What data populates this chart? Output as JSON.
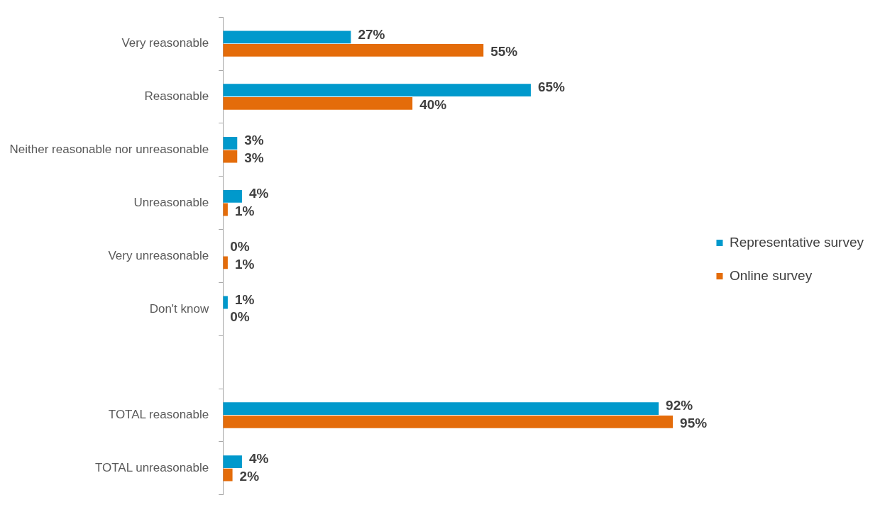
{
  "chart_data": {
    "type": "bar",
    "orientation": "horizontal",
    "categories": [
      "Very reasonable",
      "Reasonable",
      "Neither reasonable nor unreasonable",
      "Unreasonable",
      "Very unreasonable",
      "Don't know",
      null,
      "TOTAL reasonable",
      "TOTAL unreasonable"
    ],
    "series": [
      {
        "name": "Representative survey",
        "color": "#0099cc",
        "values": [
          27,
          65,
          3,
          4,
          0,
          1,
          null,
          92,
          4
        ],
        "value_labels": [
          "27%",
          "65%",
          "3%",
          "4%",
          "0%",
          "1%",
          null,
          "92%",
          "4%"
        ]
      },
      {
        "name": "Online survey",
        "color": "#e46c0a",
        "values": [
          55,
          40,
          3,
          1,
          1,
          0,
          null,
          95,
          2
        ],
        "value_labels": [
          "55%",
          "40%",
          "3%",
          "1%",
          "1%",
          "0%",
          null,
          "95%",
          "2%"
        ]
      }
    ],
    "legend": "right",
    "grid": false
  }
}
